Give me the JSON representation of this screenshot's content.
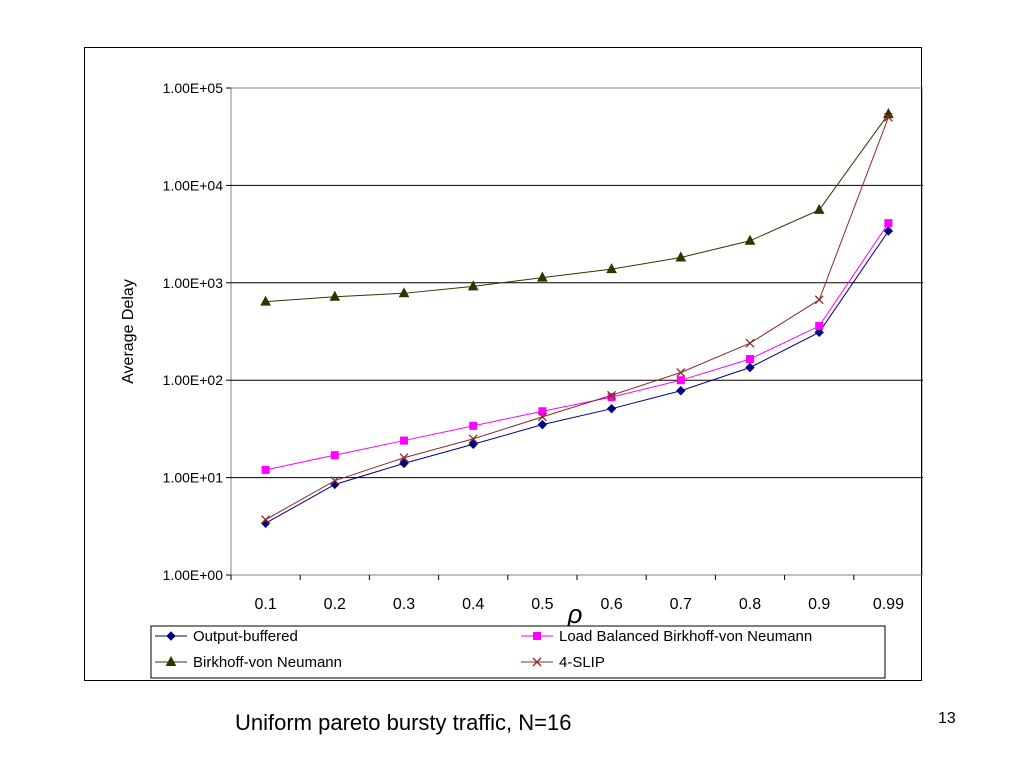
{
  "chart_data": {
    "type": "line",
    "title": "",
    "xlabel": "ρ",
    "ylabel": "Average Delay",
    "yscale": "log",
    "ylim": [
      1,
      100000
    ],
    "ytick_labels": [
      "1.00E+00",
      "1.00E+01",
      "1.00E+02",
      "1.00E+03",
      "1.00E+04",
      "1.00E+05"
    ],
    "categories": [
      "0.1",
      "0.2",
      "0.3",
      "0.4",
      "0.5",
      "0.6",
      "0.7",
      "0.8",
      "0.9",
      "0.99"
    ],
    "grid": "horizontal major lines",
    "legend_position": "bottom",
    "series": [
      {
        "name": "Output-buffered",
        "marker": "diamond",
        "color": "#000080",
        "values": [
          3.4,
          8.5,
          14,
          22,
          35,
          51,
          78,
          135,
          310,
          3400
        ]
      },
      {
        "name": "Load Balanced Birkhoff-von Neumann",
        "marker": "square",
        "color": "#ff00ff",
        "values": [
          12,
          17,
          24,
          34,
          48,
          67,
          100,
          165,
          360,
          4100
        ]
      },
      {
        "name": "Birkhoff-von Neumann",
        "marker": "triangle",
        "color": "#333300",
        "values": [
          640,
          720,
          780,
          920,
          1130,
          1380,
          1820,
          2700,
          5600,
          54000
        ]
      },
      {
        "name": "4-SLIP",
        "marker": "x",
        "color": "#8b2a2a",
        "values": [
          3.7,
          9.3,
          16,
          25,
          42,
          70,
          120,
          240,
          670,
          50000
        ]
      }
    ]
  },
  "caption": "Uniform pareto bursty traffic, N=16",
  "page_number": "13"
}
